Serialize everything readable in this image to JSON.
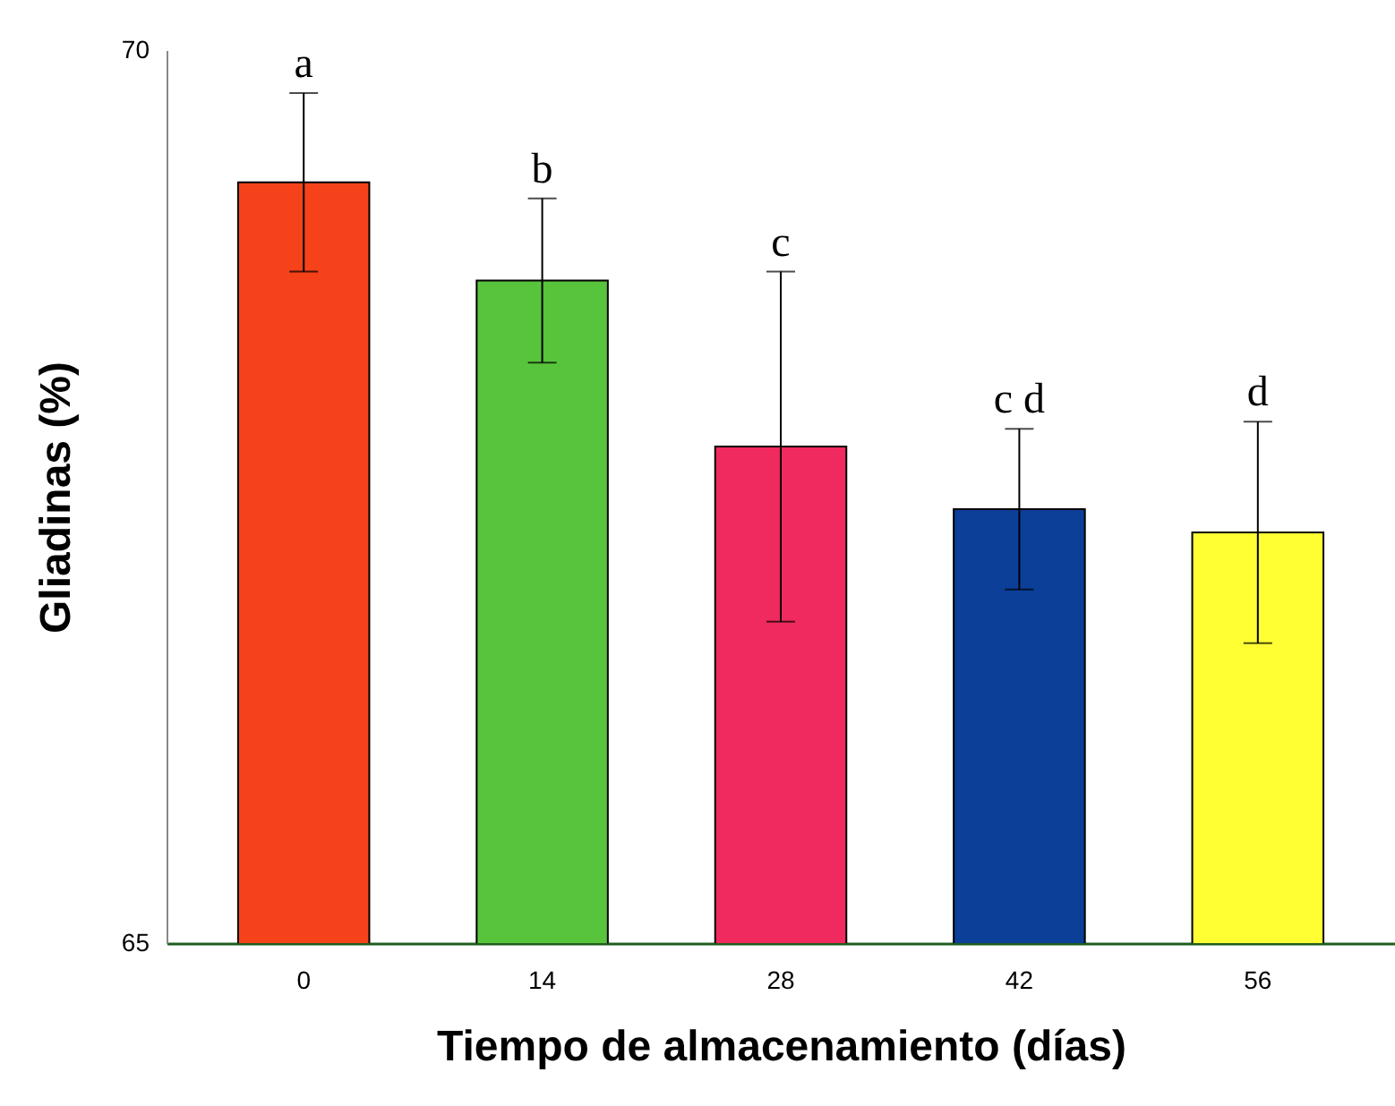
{
  "chart_data": {
    "type": "bar",
    "xlabel": "Tiempo de almacenamiento (días)",
    "ylabel": "Gliadinas (%)",
    "categories": [
      "0",
      "14",
      "28",
      "42",
      "56"
    ],
    "values": [
      69.26,
      68.71,
      67.78,
      67.43,
      67.3
    ],
    "errors": [
      0.5,
      0.46,
      0.98,
      0.45,
      0.62
    ],
    "colors": [
      "#f5421a",
      "#58c43c",
      "#f02a5e",
      "#0b3f98",
      "#ffff33"
    ],
    "ylim": [
      65,
      70
    ],
    "yticks": [
      65,
      70
    ],
    "grid": false,
    "legend": false,
    "annotations": [
      {
        "text": "a",
        "x": "0",
        "y": 69.76
      },
      {
        "text": "b",
        "x": "14",
        "y": 69.17
      },
      {
        "text": "c",
        "x": "28",
        "y": 68.76
      },
      {
        "text": "c d",
        "x": "42",
        "y": 67.88
      },
      {
        "text": "d",
        "x": "56",
        "y": 67.92
      }
    ]
  }
}
